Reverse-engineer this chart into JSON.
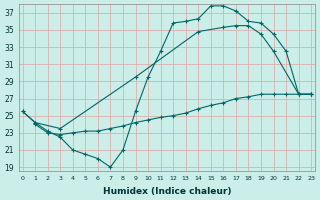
{
  "xlabel": "Humidex (Indice chaleur)",
  "bg_color": "#cceee8",
  "grid_color": "#b0d8d0",
  "line_color": "#006666",
  "xlim": [
    -0.3,
    23.3
  ],
  "ylim": [
    18.5,
    38.0
  ],
  "xticks": [
    0,
    1,
    2,
    3,
    4,
    5,
    6,
    7,
    8,
    9,
    10,
    11,
    12,
    13,
    14,
    15,
    16,
    17,
    18,
    19,
    20,
    21,
    22,
    23
  ],
  "yticks": [
    19,
    21,
    23,
    25,
    27,
    29,
    31,
    33,
    35,
    37
  ],
  "curve1_x": [
    0,
    1,
    2,
    3,
    4,
    5,
    6,
    7,
    8,
    9,
    10,
    11,
    12,
    13,
    14,
    15,
    16,
    17,
    18,
    19,
    20,
    21,
    22,
    23
  ],
  "curve1_y": [
    25.5,
    24.2,
    23.2,
    22.5,
    21.0,
    20.5,
    20.0,
    19.0,
    21.0,
    25.5,
    29.5,
    32.5,
    35.8,
    36.0,
    36.3,
    37.8,
    37.8,
    37.2,
    36.0,
    35.8,
    34.5,
    32.5,
    27.5,
    27.5
  ],
  "curve2_x": [
    0,
    1,
    3,
    9,
    14,
    16,
    17,
    18,
    19,
    20,
    22,
    23
  ],
  "curve2_y": [
    25.5,
    24.2,
    23.5,
    29.5,
    34.8,
    35.3,
    35.5,
    35.5,
    34.5,
    32.5,
    27.5,
    27.5
  ],
  "curve3_x": [
    1,
    2,
    3,
    4,
    5,
    6,
    7,
    8,
    9,
    10,
    11,
    12,
    13,
    14,
    15,
    16,
    17,
    18,
    19,
    20,
    21,
    22,
    23
  ],
  "curve3_y": [
    24.0,
    23.0,
    22.8,
    23.0,
    23.2,
    23.2,
    23.5,
    23.8,
    24.2,
    24.5,
    24.8,
    25.0,
    25.3,
    25.8,
    26.2,
    26.5,
    27.0,
    27.2,
    27.5,
    27.5,
    27.5,
    27.5,
    27.5
  ]
}
